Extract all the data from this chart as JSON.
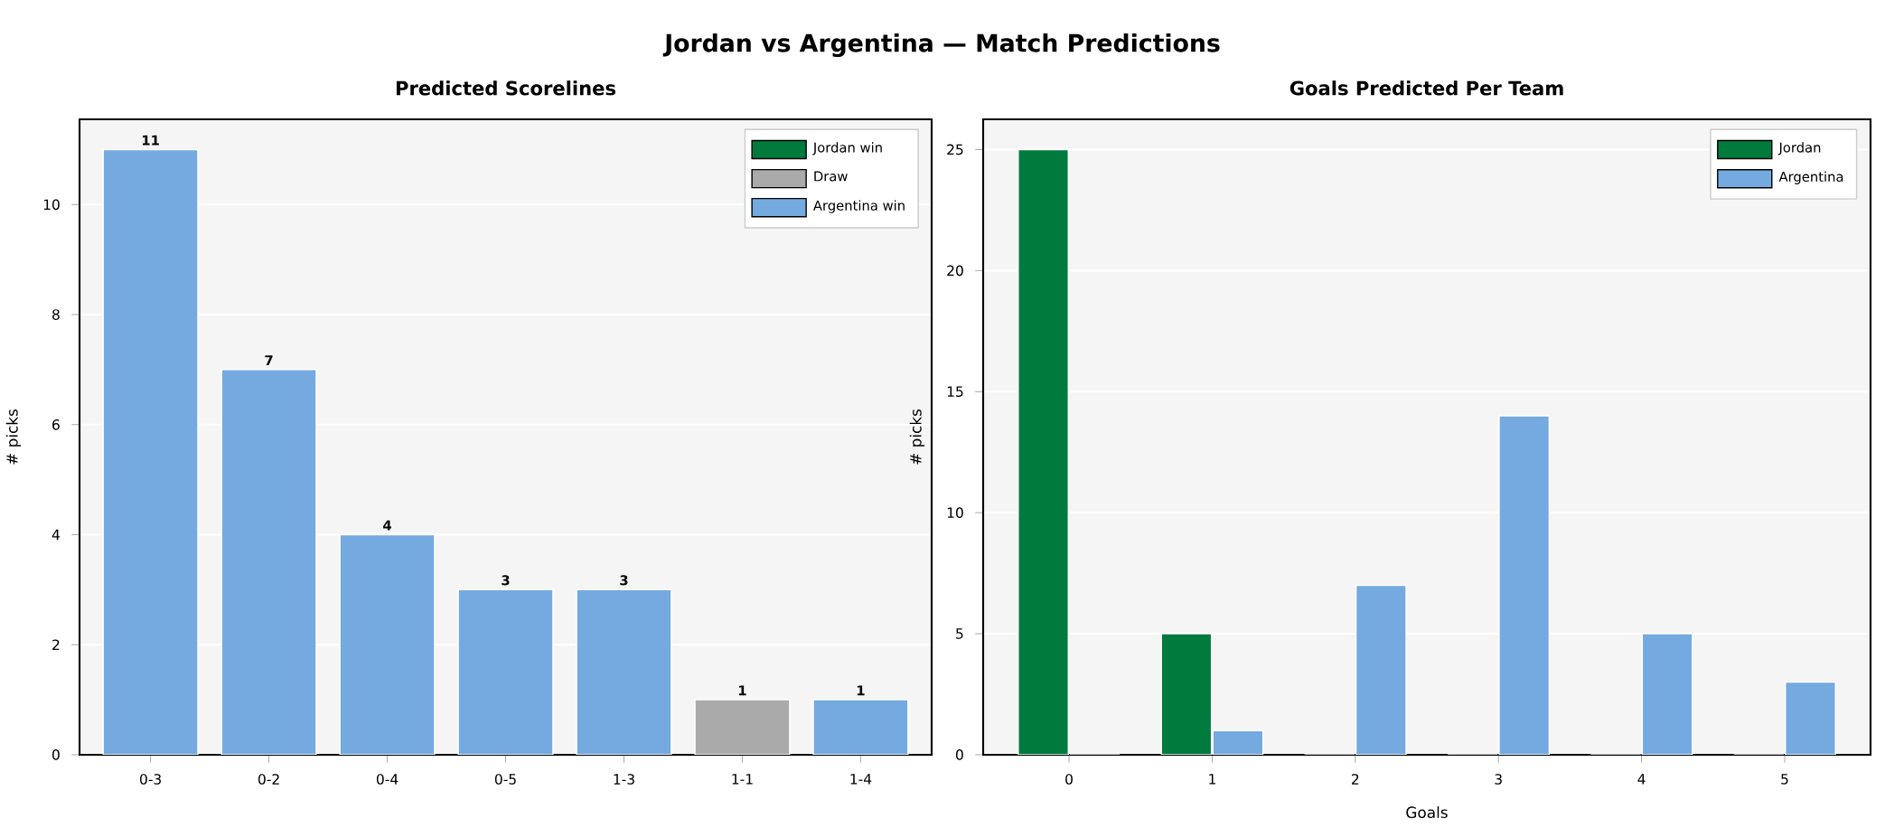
{
  "chart_data": [
    {
      "type": "bar",
      "title": "Predicted Scorelines",
      "ylabel": "# picks",
      "annotations": [
        "Jordan vs Argentina  —  Match Predictions"
      ],
      "categories": [
        "0-3",
        "0-2",
        "0-4",
        "0-5",
        "1-3",
        "1-1",
        "1-4"
      ],
      "stacked": true,
      "data_labels": true,
      "grid": "y",
      "legend": "top right",
      "ylim": [
        0,
        11.55
      ],
      "yticks": [
        0,
        2,
        4,
        6,
        8,
        10
      ],
      "series": [
        {
          "name": "Jordan win",
          "color": "#007a3d",
          "values": [
            null,
            null,
            null,
            null,
            null,
            null,
            null
          ]
        },
        {
          "name": "Draw",
          "color": "#aaaaaa",
          "values": [
            null,
            null,
            null,
            null,
            null,
            1,
            null
          ]
        },
        {
          "name": "Argentina win",
          "color": "#74aadf",
          "values": [
            11,
            7,
            4,
            3,
            3,
            null,
            1
          ]
        }
      ]
    },
    {
      "type": "bar",
      "title": "Goals Predicted Per Team",
      "xlabel": "Goals",
      "ylabel": "# picks",
      "categories": [
        "0",
        "1",
        "2",
        "3",
        "4",
        "5"
      ],
      "grid": "y",
      "legend": "top right",
      "ylim": [
        0,
        26.25
      ],
      "yticks": [
        0,
        5,
        10,
        15,
        20,
        25
      ],
      "series": [
        {
          "name": "Jordan",
          "color": "#007a3d",
          "values": [
            25,
            5,
            0,
            0,
            0,
            0
          ]
        },
        {
          "name": "Argentina",
          "color": "#74aadf",
          "values": [
            0,
            1,
            7,
            14,
            5,
            3
          ]
        }
      ]
    }
  ]
}
